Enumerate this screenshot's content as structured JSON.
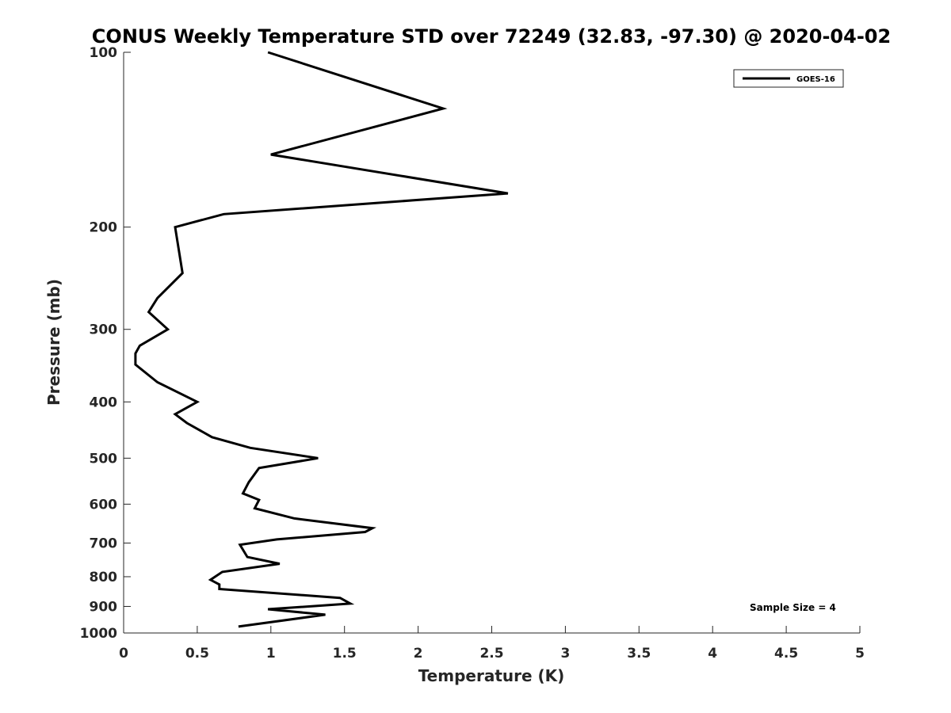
{
  "chart_data": {
    "type": "line",
    "title": "CONUS Weekly Temperature STD over 72249 (32.83, -97.30) @ 2020-04-02",
    "xlabel": "Temperature (K)",
    "ylabel": "Pressure (mb)",
    "xlim": [
      0,
      5
    ],
    "ylim": [
      100,
      1000
    ],
    "y_scale": "log",
    "y_reversed": true,
    "x_ticks": [
      0,
      0.5,
      1,
      1.5,
      2,
      2.5,
      3,
      3.5,
      4,
      4.5,
      5
    ],
    "x_tick_labels": [
      "0",
      "0.5",
      "1",
      "1.5",
      "2",
      "2.5",
      "3",
      "3.5",
      "4",
      "4.5",
      "5"
    ],
    "y_ticks": [
      100,
      200,
      300,
      400,
      500,
      600,
      700,
      800,
      900,
      1000
    ],
    "y_tick_labels": [
      "100",
      "200",
      "300",
      "400",
      "500",
      "600",
      "700",
      "800",
      "900",
      "1000"
    ],
    "grid": false,
    "legend_position": "top-right",
    "annotation": "Sample Size = 4",
    "series": [
      {
        "name": "GOES-16",
        "color": "#000000",
        "points": [
          [
            0.98,
            100
          ],
          [
            2.17,
            125
          ],
          [
            1.0,
            150
          ],
          [
            2.61,
            175
          ],
          [
            0.68,
            190
          ],
          [
            0.35,
            200
          ],
          [
            0.4,
            240
          ],
          [
            0.23,
            265
          ],
          [
            0.17,
            280
          ],
          [
            0.3,
            300
          ],
          [
            0.11,
            320
          ],
          [
            0.08,
            330
          ],
          [
            0.08,
            345
          ],
          [
            0.23,
            370
          ],
          [
            0.5,
            400
          ],
          [
            0.35,
            420
          ],
          [
            0.43,
            435
          ],
          [
            0.6,
            460
          ],
          [
            0.86,
            480
          ],
          [
            1.32,
            500
          ],
          [
            0.92,
            520
          ],
          [
            0.85,
            550
          ],
          [
            0.81,
            575
          ],
          [
            0.92,
            590
          ],
          [
            0.89,
            610
          ],
          [
            1.16,
            635
          ],
          [
            1.69,
            660
          ],
          [
            1.64,
            670
          ],
          [
            1.04,
            690
          ],
          [
            0.79,
            705
          ],
          [
            0.84,
            740
          ],
          [
            1.06,
            760
          ],
          [
            0.67,
            785
          ],
          [
            0.59,
            810
          ],
          [
            0.65,
            825
          ],
          [
            0.65,
            840
          ],
          [
            1.47,
            870
          ],
          [
            1.54,
            890
          ],
          [
            0.98,
            910
          ],
          [
            1.37,
            930
          ],
          [
            0.78,
            975
          ]
        ]
      }
    ]
  }
}
